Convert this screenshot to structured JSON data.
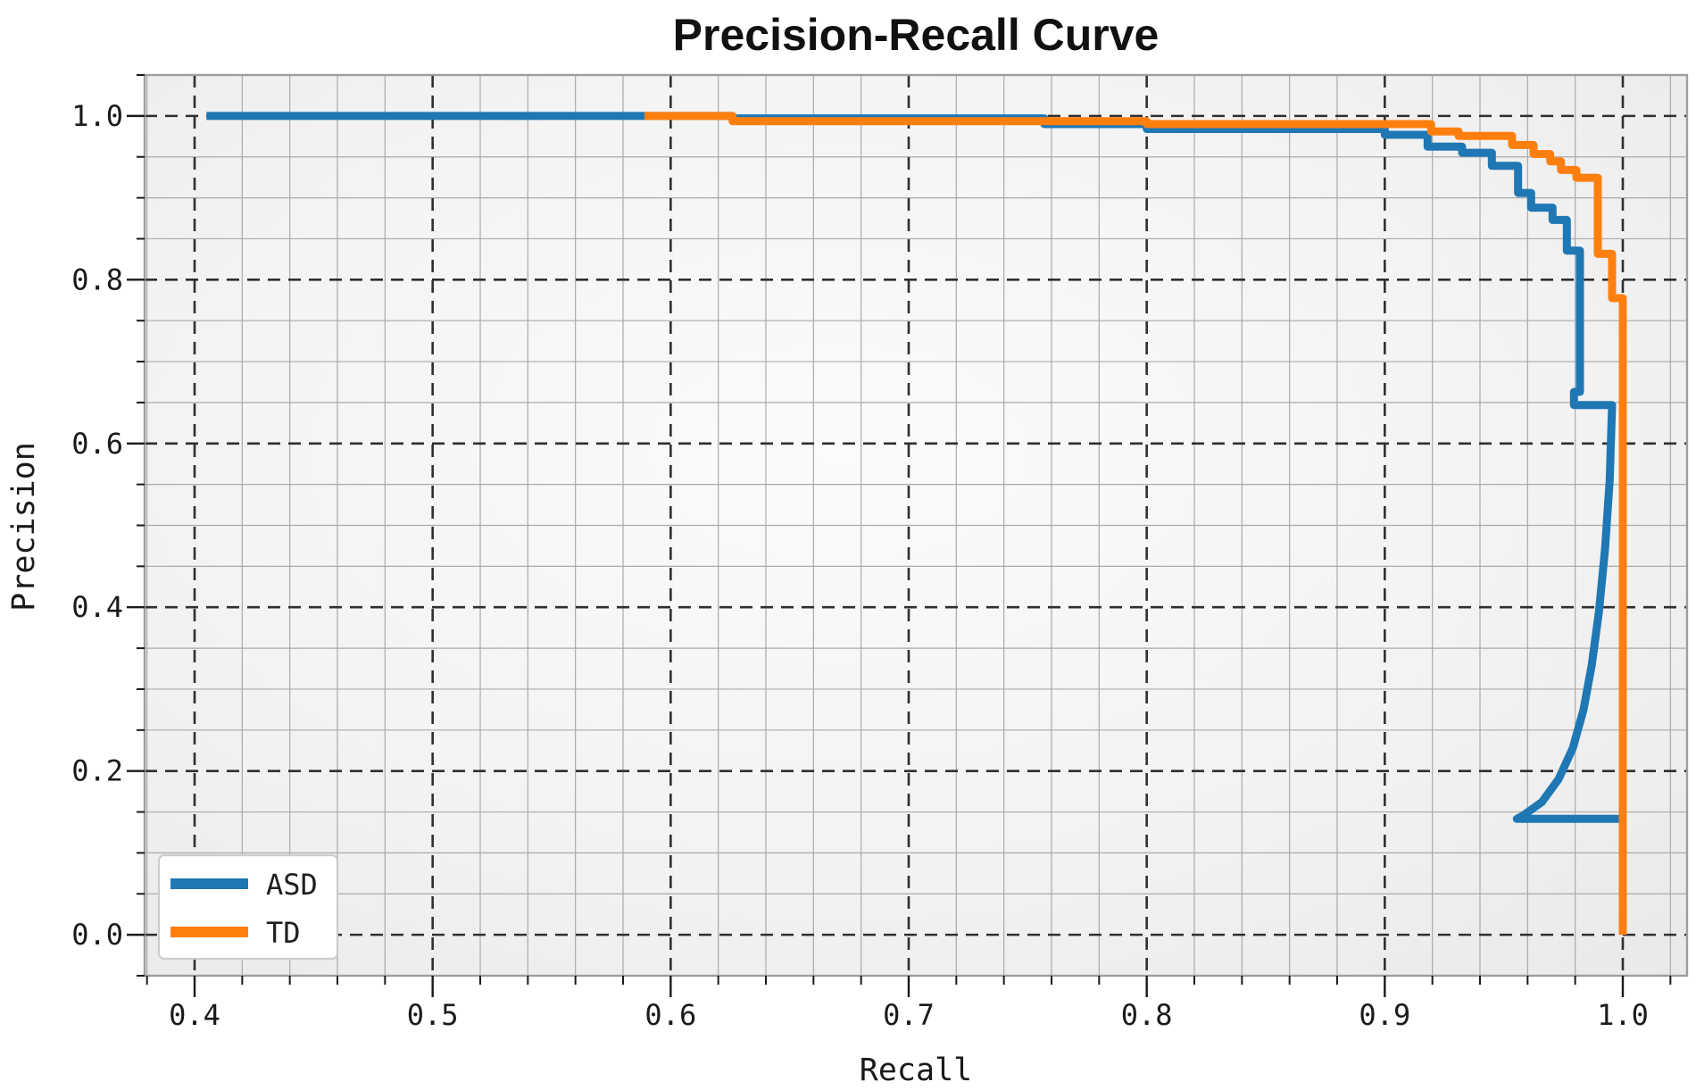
{
  "chart_data": {
    "type": "line",
    "title": "Precision-Recall Curve",
    "xlabel": "Recall",
    "ylabel": "Precision",
    "xlim": [
      0.379,
      1.027
    ],
    "ylim": [
      -0.05,
      1.05
    ],
    "xticks": [
      0.4,
      0.5,
      0.6,
      0.7,
      0.8,
      0.9,
      1.0
    ],
    "yticks": [
      0.0,
      0.2,
      0.4,
      0.6,
      0.8,
      1.0
    ],
    "x_minor_step": 0.02,
    "y_minor_step": 0.05,
    "grid": {
      "major_style": "dashed",
      "minor_style": "solid",
      "major_color": "#2f2f2f",
      "minor_color": "#aaaaaa"
    },
    "panel_color": "#ededed",
    "legend_position": "lower-left",
    "series": [
      {
        "name": "ASD",
        "color": "#1f77b4",
        "points": [
          [
            0.405,
            1.0
          ],
          [
            0.626,
            1.0
          ],
          [
            0.626,
            0.997
          ],
          [
            0.757,
            0.997
          ],
          [
            0.757,
            0.99
          ],
          [
            0.8,
            0.99
          ],
          [
            0.8,
            0.984
          ],
          [
            0.9,
            0.984
          ],
          [
            0.9,
            0.977
          ],
          [
            0.918,
            0.977
          ],
          [
            0.918,
            0.9625
          ],
          [
            0.9325,
            0.9625
          ],
          [
            0.9325,
            0.955
          ],
          [
            0.945,
            0.955
          ],
          [
            0.945,
            0.939
          ],
          [
            0.956,
            0.939
          ],
          [
            0.956,
            0.906
          ],
          [
            0.9615,
            0.906
          ],
          [
            0.9615,
            0.888
          ],
          [
            0.9705,
            0.888
          ],
          [
            0.9705,
            0.873
          ],
          [
            0.9765,
            0.873
          ],
          [
            0.9765,
            0.8355
          ],
          [
            0.982,
            0.8355
          ],
          [
            0.982,
            0.663
          ],
          [
            0.9795,
            0.663
          ],
          [
            0.9795,
            0.647
          ],
          [
            0.9955,
            0.647
          ],
          [
            0.9945,
            0.555
          ],
          [
            0.9925,
            0.47
          ],
          [
            0.99,
            0.395
          ],
          [
            0.987,
            0.33
          ],
          [
            0.9835,
            0.275
          ],
          [
            0.979,
            0.228
          ],
          [
            0.973,
            0.19
          ],
          [
            0.966,
            0.162
          ],
          [
            0.958,
            0.1455
          ],
          [
            0.9555,
            0.1415
          ],
          [
            1.0,
            0.1415
          ]
        ]
      },
      {
        "name": "TD",
        "color": "#ff7f0e",
        "points": [
          [
            0.589,
            1.0
          ],
          [
            0.626,
            1.0
          ],
          [
            0.626,
            0.9935
          ],
          [
            0.8,
            0.9935
          ],
          [
            0.8,
            0.99
          ],
          [
            0.9195,
            0.99
          ],
          [
            0.9195,
            0.981
          ],
          [
            0.931,
            0.981
          ],
          [
            0.931,
            0.9755
          ],
          [
            0.9535,
            0.9755
          ],
          [
            0.9535,
            0.9645
          ],
          [
            0.9625,
            0.9645
          ],
          [
            0.9625,
            0.9535
          ],
          [
            0.9695,
            0.9535
          ],
          [
            0.9695,
            0.9445
          ],
          [
            0.974,
            0.9445
          ],
          [
            0.974,
            0.934
          ],
          [
            0.9805,
            0.934
          ],
          [
            0.9805,
            0.9245
          ],
          [
            0.9895,
            0.9245
          ],
          [
            0.9895,
            0.8315
          ],
          [
            0.9955,
            0.8315
          ],
          [
            0.9955,
            0.7775
          ],
          [
            1.0,
            0.7775
          ],
          [
            1.0,
            0.0
          ]
        ]
      }
    ]
  }
}
